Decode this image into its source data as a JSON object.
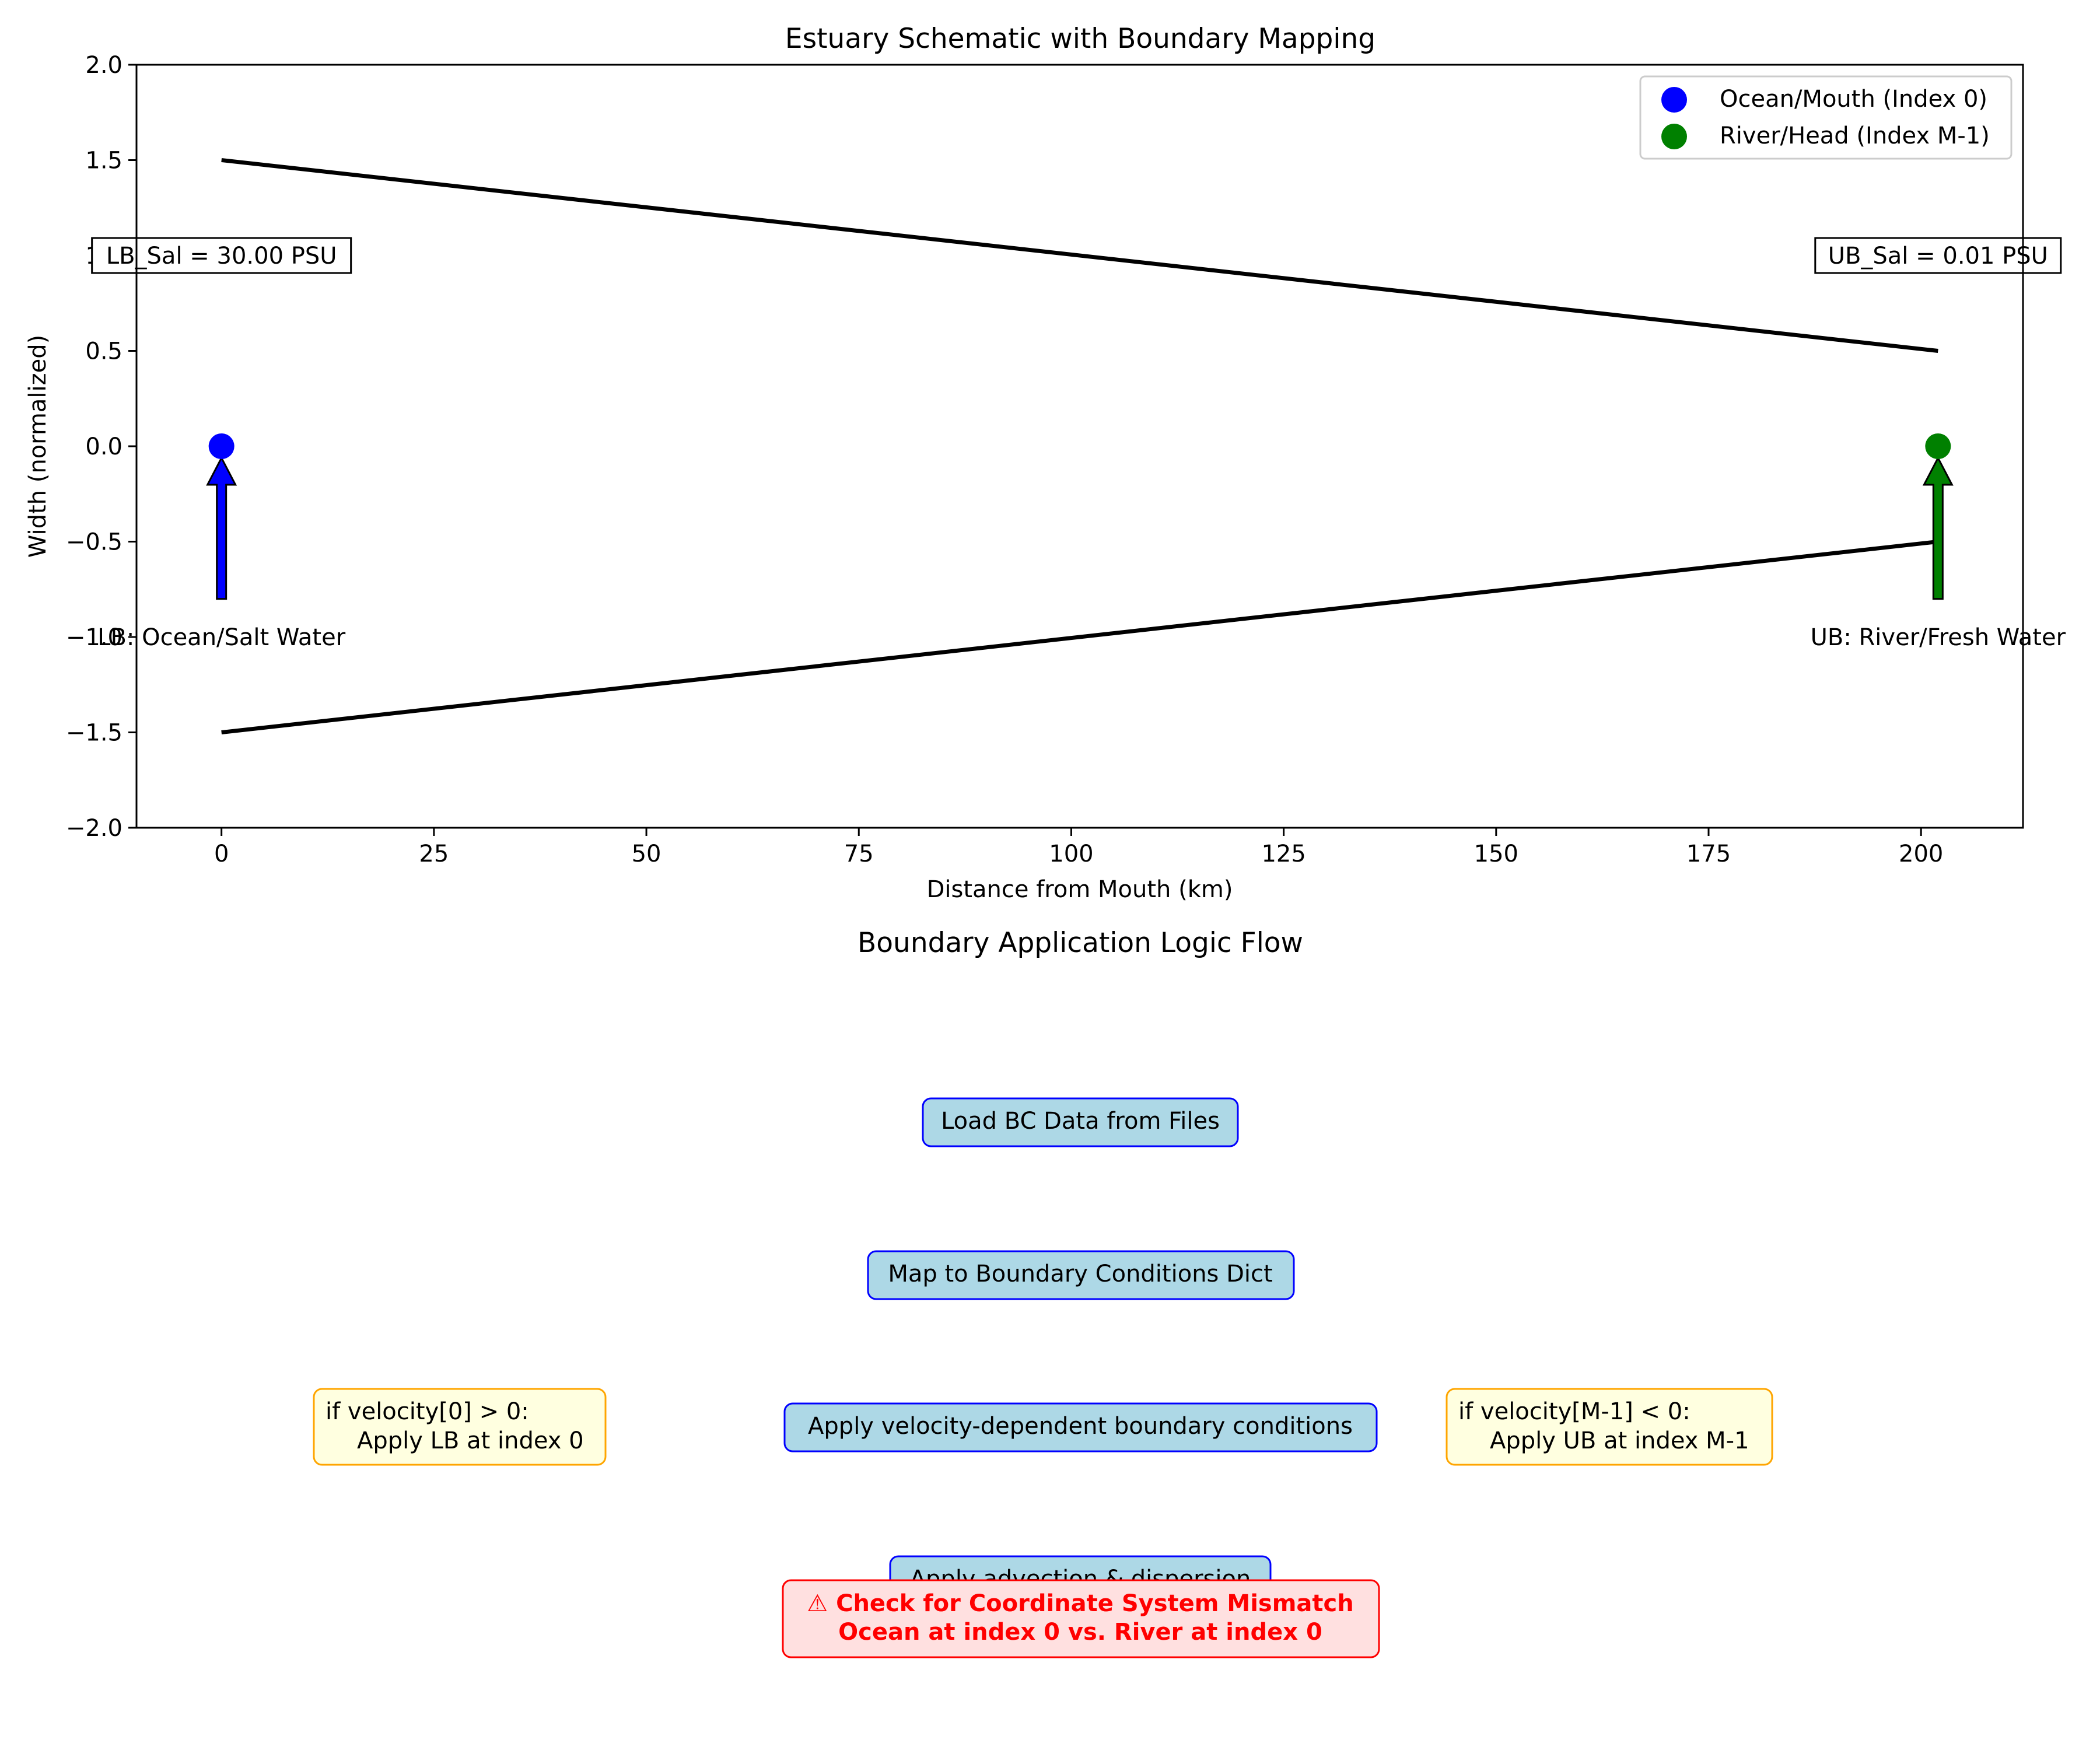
{
  "chart_data": [
    {
      "type": "line",
      "title": "Estuary Schematic with Boundary Mapping",
      "xlabel": "Distance from Mouth (km)",
      "ylabel": "Width (normalized)",
      "xlim": [
        -10,
        212
      ],
      "ylim": [
        -2.0,
        2.0
      ],
      "xticks": [
        0,
        25,
        50,
        75,
        100,
        125,
        150,
        175,
        200
      ],
      "xtick_labels": [
        "0",
        "25",
        "50",
        "75",
        "100",
        "125",
        "150",
        "175",
        "200"
      ],
      "yticks": [
        -2.0,
        -1.5,
        -1.0,
        -0.5,
        0.0,
        0.5,
        1.0,
        1.5,
        2.0
      ],
      "ytick_labels": [
        "−2.0",
        "−1.5",
        "−1.0",
        "−0.5",
        "0.0",
        "0.5",
        "1.0",
        "1.5",
        "2.0"
      ],
      "grid": false,
      "legend_position": "top-right",
      "series": [
        {
          "x": [
            0,
            202
          ],
          "y": [
            1.5,
            0.5
          ],
          "color": "#000000"
        },
        {
          "x": [
            0,
            202
          ],
          "y": [
            -1.5,
            -0.5
          ],
          "color": "#000000"
        }
      ],
      "points": [
        {
          "name": "Ocean/Mouth (Index 0)",
          "x": 0,
          "y": 0,
          "color": "#0000ff"
        },
        {
          "name": "River/Head (Index M-1)",
          "x": 202,
          "y": 0,
          "color": "#008000"
        }
      ],
      "arrows": [
        {
          "x": 0,
          "y_from": -0.8,
          "y_to": 0,
          "color": "#0000ff",
          "label": "LB: Ocean/Salt Water",
          "label_y": -1.0
        },
        {
          "x": 202,
          "y_from": -0.8,
          "y_to": 0,
          "color": "#008000",
          "label": "UB: River/Fresh Water",
          "label_y": -1.0
        }
      ],
      "annotations": [
        {
          "text": "LB_Sal = 30.00 PSU",
          "x": 0,
          "y": 1.0
        },
        {
          "text": "UB_Sal = 0.01 PSU",
          "x": 202,
          "y": 1.0
        }
      ]
    }
  ],
  "flow": {
    "title": "Boundary Application Logic Flow",
    "steps": [
      {
        "text": "Load BC Data from Files",
        "style": "step"
      },
      {
        "text": "Map to Boundary Conditions Dict",
        "style": "step"
      },
      {
        "text": "Apply velocity-dependent boundary conditions",
        "style": "step"
      },
      {
        "text": "Apply advection & dispersion",
        "style": "step"
      }
    ],
    "left_note": [
      "if velocity[0] > 0:",
      "Apply LB at index 0"
    ],
    "right_note": [
      "if velocity[M-1] < 0:",
      "Apply UB at index M-1"
    ],
    "warning": [
      "⚠ Check for Coordinate System Mismatch",
      "Ocean at index 0 vs. River at index 0"
    ]
  },
  "colors": {
    "step_fill": "#add8e6",
    "step_border": "#0000ff",
    "note_fill": "#ffffe0",
    "note_border": "#ffa500",
    "warn_fill": "#ffe0e0",
    "warn_border": "#ff0000",
    "warn_text": "#ff0000"
  }
}
